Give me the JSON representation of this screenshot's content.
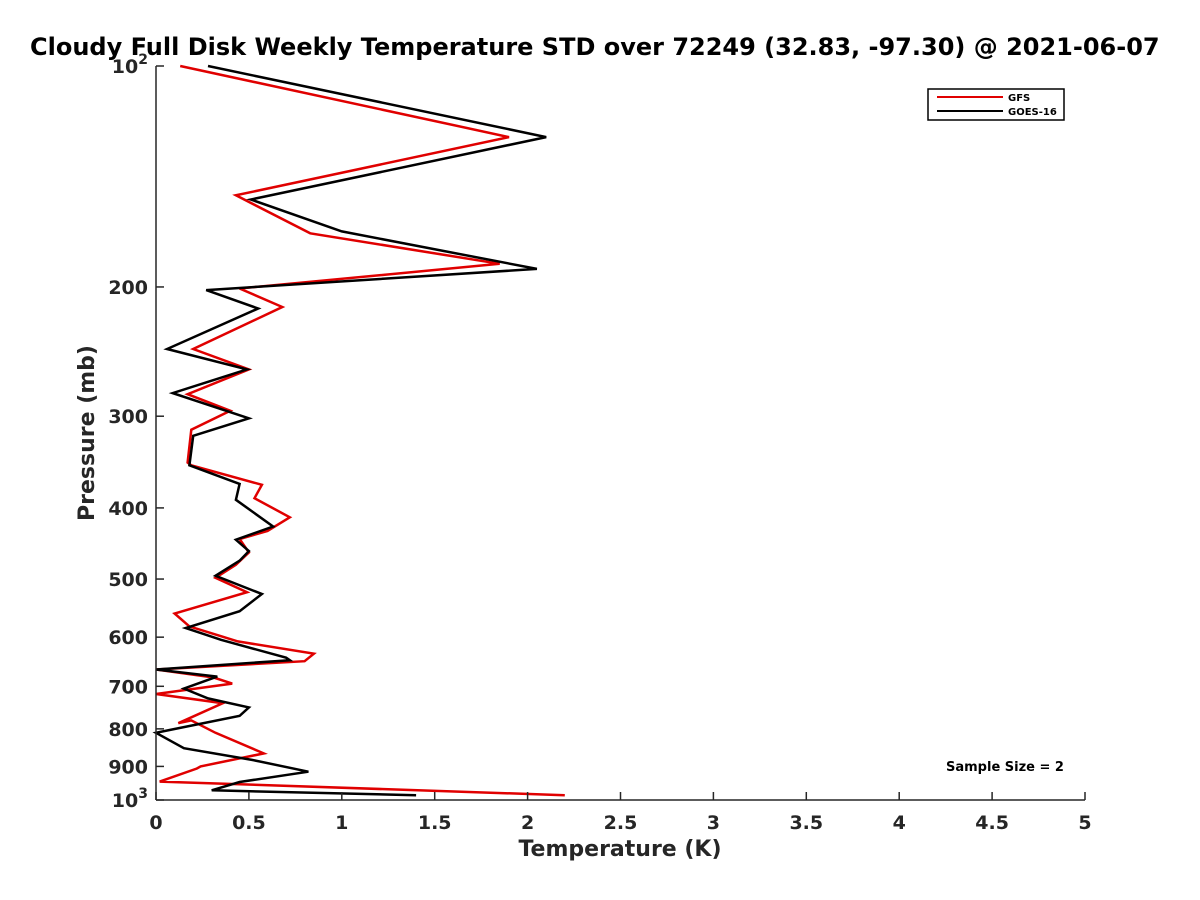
{
  "chart_data": {
    "type": "line",
    "title": "Cloudy Full Disk Weekly Temperature STD over 72249 (32.83, -97.30) @ 2021-06-07",
    "xlabel": "Temperature (K)",
    "ylabel": "Pressure (mb)",
    "xlim": [
      0,
      5
    ],
    "ylim": [
      1000,
      100
    ],
    "yscale": "log",
    "y_reversed": true,
    "grid": false,
    "legend_position": "top-right",
    "x_ticks": [
      "0",
      "0.5",
      "1",
      "1.5",
      "2",
      "2.5",
      "3",
      "3.5",
      "4",
      "4.5",
      "5"
    ],
    "y_ticks": [
      {
        "value": 100,
        "base": "10",
        "exp": "2"
      },
      {
        "value": 200,
        "label": "200"
      },
      {
        "value": 300,
        "label": "300"
      },
      {
        "value": 400,
        "label": "400"
      },
      {
        "value": 500,
        "label": "500"
      },
      {
        "value": 600,
        "label": "600"
      },
      {
        "value": 700,
        "label": "700"
      },
      {
        "value": 800,
        "label": "800"
      },
      {
        "value": 900,
        "label": "900"
      },
      {
        "value": 1000,
        "base": "10",
        "exp": "3"
      }
    ],
    "annotation": "Sample Size = 2",
    "series": [
      {
        "name": "GFS",
        "color": "#e00000",
        "points": [
          [
            0.13,
            100
          ],
          [
            1.9,
            125
          ],
          [
            0.43,
            150
          ],
          [
            0.83,
            169
          ],
          [
            1.85,
            186
          ],
          [
            0.45,
            201
          ],
          [
            0.68,
            213
          ],
          [
            0.2,
            243
          ],
          [
            0.5,
            259
          ],
          [
            0.17,
            280
          ],
          [
            0.4,
            295
          ],
          [
            0.19,
            313
          ],
          [
            0.17,
            347
          ],
          [
            0.19,
            350
          ],
          [
            0.57,
            372
          ],
          [
            0.53,
            388
          ],
          [
            0.72,
            412
          ],
          [
            0.6,
            430
          ],
          [
            0.45,
            441
          ],
          [
            0.5,
            460
          ],
          [
            0.43,
            478
          ],
          [
            0.32,
            498
          ],
          [
            0.49,
            521
          ],
          [
            0.1,
            557
          ],
          [
            0.18,
            580
          ],
          [
            0.44,
            608
          ],
          [
            0.85,
            632
          ],
          [
            0.8,
            647
          ],
          [
            0.0,
            664
          ],
          [
            0.31,
            681
          ],
          [
            0.41,
            694
          ],
          [
            0.0,
            717
          ],
          [
            0.36,
            738
          ],
          [
            0.12,
            786
          ],
          [
            0.19,
            779
          ],
          [
            0.32,
            810
          ],
          [
            0.58,
            864
          ],
          [
            0.24,
            900
          ],
          [
            0.22,
            906
          ],
          [
            0.02,
            944
          ],
          [
            2.2,
            985
          ]
        ]
      },
      {
        "name": "GOES-16",
        "color": "#000000",
        "points": [
          [
            0.28,
            100
          ],
          [
            2.1,
            125
          ],
          [
            0.51,
            152
          ],
          [
            1.0,
            168
          ],
          [
            2.05,
            189
          ],
          [
            0.27,
            202
          ],
          [
            0.55,
            214
          ],
          [
            0.06,
            243
          ],
          [
            0.49,
            259
          ],
          [
            0.09,
            279
          ],
          [
            0.5,
            302
          ],
          [
            0.2,
            319
          ],
          [
            0.18,
            350
          ],
          [
            0.45,
            371
          ],
          [
            0.43,
            390
          ],
          [
            0.63,
            424
          ],
          [
            0.43,
            442
          ],
          [
            0.5,
            458
          ],
          [
            0.45,
            472
          ],
          [
            0.32,
            495
          ],
          [
            0.57,
            524
          ],
          [
            0.45,
            553
          ],
          [
            0.16,
            583
          ],
          [
            0.35,
            605
          ],
          [
            0.7,
            640
          ],
          [
            0.72,
            645
          ],
          [
            0.0,
            664
          ],
          [
            0.33,
            679
          ],
          [
            0.15,
            705
          ],
          [
            0.28,
            727
          ],
          [
            0.5,
            748
          ],
          [
            0.45,
            768
          ],
          [
            0.07,
            803
          ],
          [
            0.0,
            810
          ],
          [
            0.15,
            850
          ],
          [
            0.52,
            882
          ],
          [
            0.82,
            915
          ],
          [
            0.45,
            945
          ],
          [
            0.3,
            970
          ],
          [
            1.4,
            985
          ]
        ]
      }
    ]
  }
}
